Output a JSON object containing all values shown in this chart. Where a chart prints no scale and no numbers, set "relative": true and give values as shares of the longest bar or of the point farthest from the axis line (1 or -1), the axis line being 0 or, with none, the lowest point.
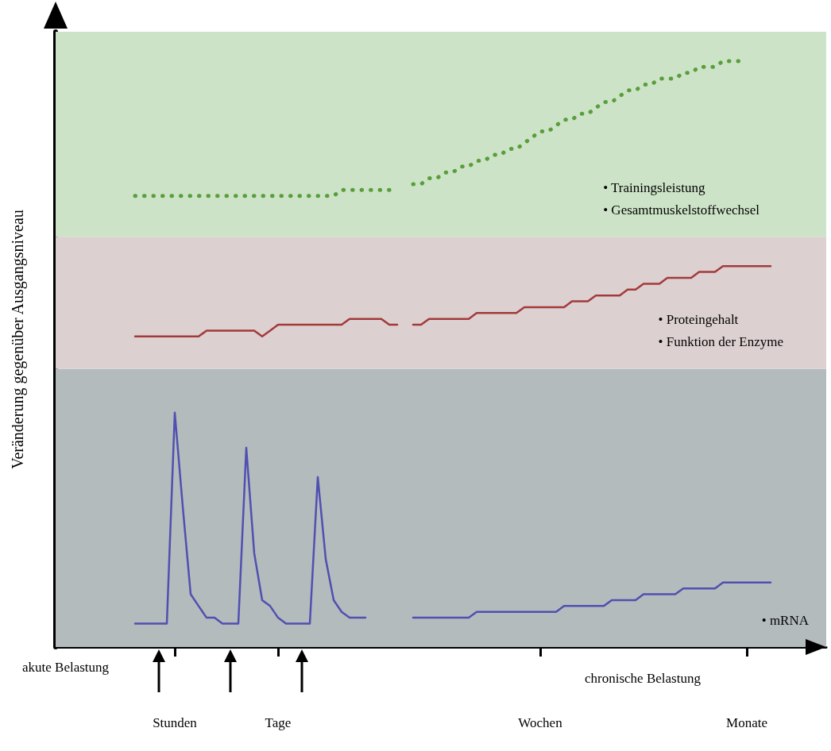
{
  "chart_data": {
    "type": "line",
    "relative": true,
    "ylabel": "Veränderung gegenüber Ausgangsniveau",
    "categories": [
      null,
      null,
      null,
      null,
      null,
      null,
      null,
      null,
      null,
      null,
      null,
      null,
      null,
      null,
      null,
      "Stunden",
      null,
      null,
      null,
      null,
      null,
      null,
      null,
      null,
      null,
      null,
      null,
      null,
      "Tage",
      null,
      null,
      null,
      null,
      null,
      null,
      null,
      null,
      null,
      null,
      null,
      null,
      null,
      null,
      null,
      null,
      null,
      null,
      null,
      null,
      null,
      null,
      null,
      null,
      null,
      null,
      null,
      null,
      null,
      null,
      null,
      null,
      "Wochen",
      null,
      null,
      null,
      null,
      null,
      null,
      null,
      null,
      null,
      null,
      null,
      null,
      null,
      null,
      null,
      null,
      null,
      null,
      null,
      null,
      null,
      null,
      null,
      null,
      null,
      "Monate",
      null,
      null,
      null,
      null,
      null,
      null,
      null,
      null,
      null,
      null
    ],
    "series": [
      {
        "color": "#5050b0",
        "line_style": "solid",
        "values": [
          null,
          null,
          null,
          null,
          null,
          null,
          null,
          null,
          null,
          null,
          0.04,
          0.04,
          0.04,
          0.04,
          0.04,
          0.4,
          0.24,
          0.09,
          0.07,
          0.05,
          0.05,
          0.04,
          0.04,
          0.04,
          0.34,
          0.16,
          0.08,
          0.07,
          0.05,
          0.04,
          0.04,
          0.04,
          0.04,
          0.29,
          0.15,
          0.08,
          0.06,
          0.05,
          0.05,
          0.05,
          null,
          null,
          null,
          null,
          null,
          0.05,
          0.05,
          0.05,
          0.05,
          0.05,
          0.05,
          0.05,
          0.05,
          0.06,
          0.06,
          0.06,
          0.06,
          0.06,
          0.06,
          0.06,
          0.06,
          0.06,
          0.06,
          0.06,
          0.07,
          0.07,
          0.07,
          0.07,
          0.07,
          0.07,
          0.08,
          0.08,
          0.08,
          0.08,
          0.09,
          0.09,
          0.09,
          0.09,
          0.09,
          0.1,
          0.1,
          0.1,
          0.1,
          0.1,
          0.11,
          0.11,
          0.11,
          0.11,
          0.11,
          0.11,
          0.11,
          null,
          null,
          null,
          null,
          null,
          null,
          null
        ]
      },
      {
        "color": "#a33a3a",
        "line_style": "solid",
        "values": [
          null,
          null,
          null,
          null,
          null,
          null,
          null,
          null,
          null,
          null,
          0.53,
          0.53,
          0.53,
          0.53,
          0.53,
          0.53,
          0.53,
          0.53,
          0.53,
          0.54,
          0.54,
          0.54,
          0.54,
          0.54,
          0.54,
          0.54,
          0.53,
          0.54,
          0.55,
          0.55,
          0.55,
          0.55,
          0.55,
          0.55,
          0.55,
          0.55,
          0.55,
          0.56,
          0.56,
          0.56,
          0.56,
          0.56,
          0.55,
          0.55,
          null,
          0.55,
          0.55,
          0.56,
          0.56,
          0.56,
          0.56,
          0.56,
          0.56,
          0.57,
          0.57,
          0.57,
          0.57,
          0.57,
          0.57,
          0.58,
          0.58,
          0.58,
          0.58,
          0.58,
          0.58,
          0.59,
          0.59,
          0.59,
          0.6,
          0.6,
          0.6,
          0.6,
          0.61,
          0.61,
          0.62,
          0.62,
          0.62,
          0.63,
          0.63,
          0.63,
          0.63,
          0.64,
          0.64,
          0.64,
          0.65,
          0.65,
          0.65,
          0.65,
          0.65,
          0.65,
          0.65,
          null,
          null,
          null,
          null,
          null,
          null,
          null
        ]
      },
      {
        "color": "#5a9e3c",
        "line_style": "dotted",
        "values": [
          null,
          null,
          null,
          null,
          null,
          null,
          null,
          null,
          null,
          null,
          0.77,
          0.77,
          0.77,
          0.77,
          0.77,
          0.77,
          0.77,
          0.77,
          0.77,
          0.77,
          0.77,
          0.77,
          0.77,
          0.77,
          0.77,
          0.77,
          0.77,
          0.77,
          0.77,
          0.77,
          0.77,
          0.77,
          0.77,
          0.77,
          0.77,
          0.77,
          0.78,
          0.78,
          0.78,
          0.78,
          0.78,
          0.78,
          0.78,
          0.78,
          null,
          0.79,
          0.79,
          0.8,
          0.8,
          0.81,
          0.81,
          0.82,
          0.82,
          0.83,
          0.83,
          0.84,
          0.84,
          0.85,
          0.85,
          0.86,
          0.87,
          0.88,
          0.88,
          0.89,
          0.9,
          0.9,
          0.91,
          0.91,
          0.92,
          0.93,
          0.93,
          0.94,
          0.95,
          0.95,
          0.96,
          0.96,
          0.97,
          0.97,
          0.97,
          0.98,
          0.98,
          0.99,
          0.99,
          0.99,
          1.0,
          1.0,
          1.0,
          1.0,
          null,
          null,
          null,
          null,
          null,
          null,
          null,
          null,
          null,
          null
        ]
      }
    ],
    "bands": [
      {
        "axis": "y",
        "from": 0,
        "to": 0.475,
        "color": "#b4bbbd",
        "label": "• mRNA"
      },
      {
        "axis": "y",
        "from": 0.475,
        "to": 0.7,
        "color": "#ddd0d1",
        "label": "• Proteingehalt\n• Funktion der Enzyme"
      },
      {
        "axis": "y",
        "from": 0.7,
        "to": 1.05,
        "color": "#cde3c7",
        "label": "• Trainingsleistung\n• Gesamtmuskelstoffwechsel"
      }
    ],
    "annotations": [
      "akute Belastung",
      "chronische Belastung"
    ]
  }
}
